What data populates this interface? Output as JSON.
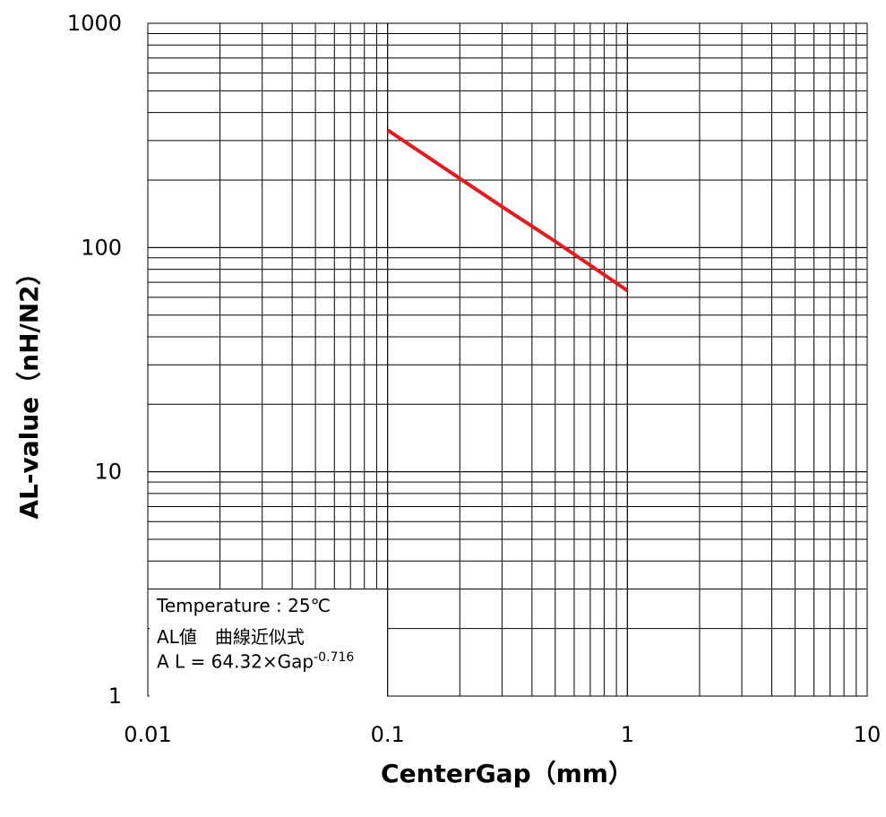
{
  "chart_data": {
    "type": "line",
    "xlabel": "CenterGap（mm）",
    "ylabel": "AL-value（nH/N2）",
    "x_scale": "log",
    "y_scale": "log",
    "xlim": [
      0.01,
      10
    ],
    "ylim": [
      1,
      1000
    ],
    "x_ticks": [
      "0.01",
      "0.1",
      "1",
      "10"
    ],
    "y_ticks": [
      "1",
      "10",
      "100",
      "1000"
    ],
    "grid": true,
    "series": [
      {
        "color": "#e8191b",
        "x": [
          0.1,
          0.2,
          0.3,
          0.5,
          1
        ],
        "y": [
          334.2,
          203.3,
          152.2,
          106.5,
          64.3
        ]
      }
    ],
    "annotation": {
      "line1": "Temperature : 25℃",
      "line2": "AL値　曲線近似式",
      "line3_prefix": " A L = 64.32×Gap",
      "line3_exp": "-0.716"
    }
  }
}
